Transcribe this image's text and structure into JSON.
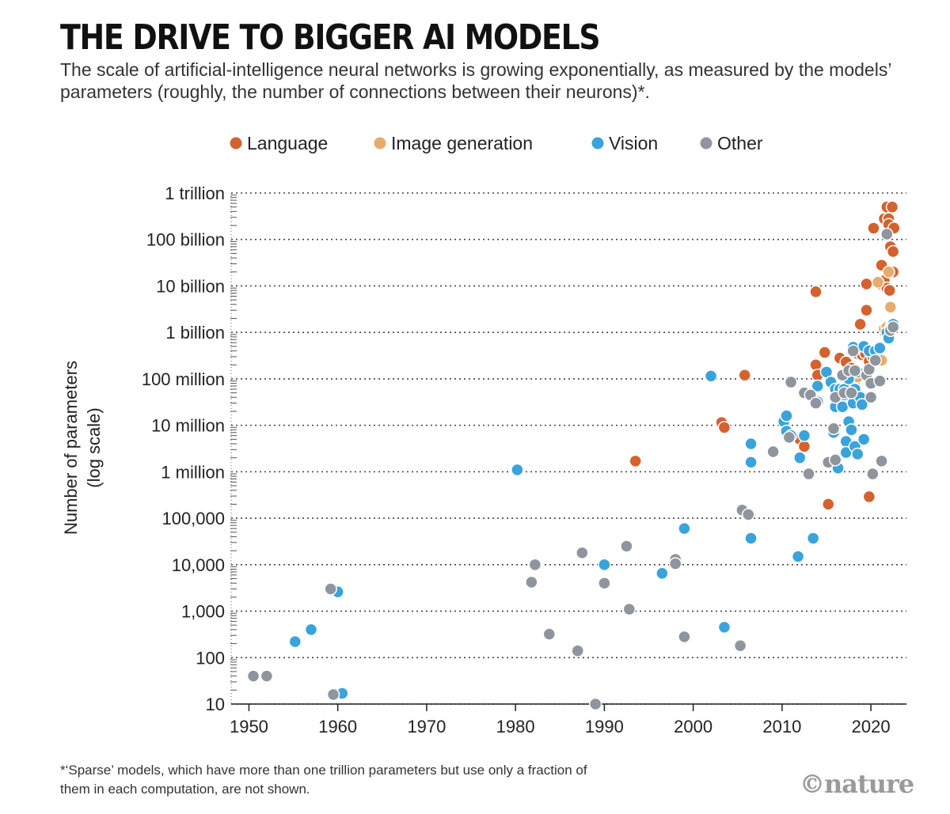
{
  "header": {
    "title": "THE DRIVE TO BIGGER AI MODELS",
    "subtitle": "The scale of artificial-intelligence neural networks is growing exponentially, as measured by the models’ parameters (roughly, the number of connections between their neurons)*."
  },
  "footer": {
    "footnote": "*‘Sparse’ models, which have more than one trillion parameters but use only a fraction of them in each computation, are not shown.",
    "credit": "©nature"
  },
  "chart_data": {
    "type": "scatter",
    "title": "",
    "xlabel": "",
    "ylabel": "Number of parameters (log scale)",
    "ylabel_lines": [
      "Number of parameters",
      "(log scale)"
    ],
    "xlim": [
      1948,
      2024
    ],
    "ylim": [
      10,
      1000000000000
    ],
    "yscale": "log",
    "grid": true,
    "legend_position": "top",
    "x_ticks": [
      1950,
      1960,
      1970,
      1980,
      1990,
      2000,
      2010,
      2020
    ],
    "x_tick_labels": [
      "1950",
      "1960",
      "1970",
      "1980",
      "1990",
      "2000",
      "2010",
      "2020"
    ],
    "y_ticks": [
      10,
      100,
      1000,
      10000,
      100000,
      1000000,
      10000000,
      100000000,
      1000000000,
      10000000000,
      100000000000,
      1000000000000
    ],
    "y_tick_labels": [
      "10",
      "100",
      "1,000",
      "10,000",
      "100,000",
      "1 million",
      "10 million",
      "100 million",
      "1 billion",
      "10 billion",
      "100 billion",
      "1 trillion"
    ],
    "series": [
      {
        "name": "Language",
        "color": "#d4622e",
        "points": [
          [
            1993.5,
            1700000
          ],
          [
            2003.2,
            11500000
          ],
          [
            2003.5,
            9000000
          ],
          [
            2005.8,
            120000000
          ],
          [
            2012,
            5000000
          ],
          [
            2012.5,
            3500000
          ],
          [
            2013.8,
            7500000000
          ],
          [
            2013.8,
            200000000
          ],
          [
            2014,
            120000000
          ],
          [
            2014.8,
            370000000
          ],
          [
            2015.2,
            200000
          ],
          [
            2016.5,
            280000000
          ],
          [
            2017.2,
            230000000
          ],
          [
            2017.8,
            170000000
          ],
          [
            2018.5,
            350000000
          ],
          [
            2018.8,
            1500000000
          ],
          [
            2019,
            330000000
          ],
          [
            2019.4,
            350000000
          ],
          [
            2019.5,
            3000000000
          ],
          [
            2019.5,
            11000000000
          ],
          [
            2019.8,
            240000000
          ],
          [
            2019.8,
            290000
          ],
          [
            2020.2,
            300000000
          ],
          [
            2020.3,
            175000000000
          ],
          [
            2021,
            11000000000
          ],
          [
            2021.2,
            28000000000
          ],
          [
            2021.5,
            280000000000
          ],
          [
            2021.5,
            13000000000
          ],
          [
            2021.6,
            1000000000
          ],
          [
            2021.8,
            9000000000
          ],
          [
            2021.8,
            500000000000
          ],
          [
            2022,
            280000000000
          ],
          [
            2022,
            210000000000
          ],
          [
            2022.1,
            8000000000
          ],
          [
            2022.2,
            70000000000
          ],
          [
            2022.4,
            500000000000
          ],
          [
            2022.5,
            55000000000
          ],
          [
            2022.5,
            20000000000
          ],
          [
            2022.5,
            1500000000
          ],
          [
            2022.6,
            176000000000
          ]
        ]
      },
      {
        "name": "Image generation",
        "color": "#e8ab6a",
        "points": [
          [
            2018.2,
            85000000
          ],
          [
            2018.5,
            110000000
          ],
          [
            2020.8,
            12000000000
          ],
          [
            2021.2,
            250000000
          ],
          [
            2021.5,
            1200000000
          ],
          [
            2021.8,
            1300000000
          ],
          [
            2022,
            20000000000
          ],
          [
            2022.2,
            3500000000
          ],
          [
            2022.3,
            1400000000
          ]
        ]
      },
      {
        "name": "Vision",
        "color": "#3aa3db",
        "points": [
          [
            1955.2,
            220
          ],
          [
            1957,
            400
          ],
          [
            1960,
            2600
          ],
          [
            1960.5,
            17
          ],
          [
            1980.2,
            1100000
          ],
          [
            1990,
            10000
          ],
          [
            1996.5,
            6500
          ],
          [
            1999,
            60000
          ],
          [
            2002,
            115000000
          ],
          [
            2003.5,
            450
          ],
          [
            2006.5,
            4000000
          ],
          [
            2006.5,
            1600000
          ],
          [
            2006.5,
            37000
          ],
          [
            2010.2,
            12000000
          ],
          [
            2010.5,
            16000000
          ],
          [
            2010.5,
            7500000
          ],
          [
            2011,
            6000000
          ],
          [
            2011.8,
            15000
          ],
          [
            2012,
            2000000
          ],
          [
            2012.5,
            6000000
          ],
          [
            2013.5,
            37000
          ],
          [
            2014,
            32000000
          ],
          [
            2014,
            70000000
          ],
          [
            2015,
            140000000
          ],
          [
            2015.5,
            85000000
          ],
          [
            2015.8,
            7000000
          ],
          [
            2016,
            60000000
          ],
          [
            2016,
            25000000
          ],
          [
            2016.3,
            1200000
          ],
          [
            2016.5,
            60000000
          ],
          [
            2016.5,
            40000000
          ],
          [
            2016.8,
            25000000
          ],
          [
            2017,
            60000000
          ],
          [
            2017,
            45000000
          ],
          [
            2017.2,
            4500000
          ],
          [
            2017.2,
            2600000
          ],
          [
            2017.5,
            100000000
          ],
          [
            2017.5,
            12000000
          ],
          [
            2017.8,
            8000000
          ],
          [
            2018,
            480000000
          ],
          [
            2018,
            30000000
          ],
          [
            2018.2,
            60000000
          ],
          [
            2018.2,
            3500000
          ],
          [
            2018.5,
            2400000
          ],
          [
            2018.5,
            140000000
          ],
          [
            2018.8,
            40000000
          ],
          [
            2019,
            28000000
          ],
          [
            2019.2,
            500000000
          ],
          [
            2019.2,
            5000000
          ],
          [
            2019.8,
            400000000
          ],
          [
            2020.5,
            400000000
          ],
          [
            2021,
            460000000
          ],
          [
            2021.8,
            1000000000
          ],
          [
            2022,
            750000000
          ],
          [
            2022.2,
            1200000000
          ],
          [
            2022.5,
            1500000000
          ]
        ]
      },
      {
        "name": "Other",
        "color": "#8f959c",
        "points": [
          [
            1950.5,
            40
          ],
          [
            1952,
            40
          ],
          [
            1959.2,
            3000
          ],
          [
            1959.5,
            16
          ],
          [
            1981.8,
            4200
          ],
          [
            1982.2,
            10000
          ],
          [
            1983.8,
            320
          ],
          [
            1987,
            140
          ],
          [
            1987.5,
            18000
          ],
          [
            1989,
            10
          ],
          [
            1990,
            4000
          ],
          [
            1992.5,
            25000
          ],
          [
            1992.8,
            1100
          ],
          [
            1998,
            13000
          ],
          [
            1998,
            10500
          ],
          [
            1999,
            280
          ],
          [
            2005.3,
            180
          ],
          [
            2005.5,
            150000
          ],
          [
            2006.2,
            120000
          ],
          [
            2009,
            2700000
          ],
          [
            2010.8,
            5500000
          ],
          [
            2011,
            85000000
          ],
          [
            2012.5,
            50000000
          ],
          [
            2013,
            900000
          ],
          [
            2013.2,
            45000000
          ],
          [
            2013.8,
            30000000
          ],
          [
            2015.2,
            1600000
          ],
          [
            2015.8,
            8500000
          ],
          [
            2016,
            40000000
          ],
          [
            2016,
            1800000
          ],
          [
            2016.8,
            120000000
          ],
          [
            2017,
            50000000
          ],
          [
            2017.5,
            150000000
          ],
          [
            2017.8,
            50000000
          ],
          [
            2018,
            400000000
          ],
          [
            2018.2,
            150000000
          ],
          [
            2019.5,
            120000000
          ],
          [
            2019.8,
            160000000
          ],
          [
            2020,
            40000000
          ],
          [
            2020,
            80000000
          ],
          [
            2020.2,
            900000
          ],
          [
            2020.5,
            250000000
          ],
          [
            2021,
            90000000
          ],
          [
            2021.2,
            1700000
          ],
          [
            2021.8,
            130000000000
          ],
          [
            2022.2,
            1100000000
          ],
          [
            2022.5,
            1300000000
          ]
        ]
      }
    ]
  }
}
